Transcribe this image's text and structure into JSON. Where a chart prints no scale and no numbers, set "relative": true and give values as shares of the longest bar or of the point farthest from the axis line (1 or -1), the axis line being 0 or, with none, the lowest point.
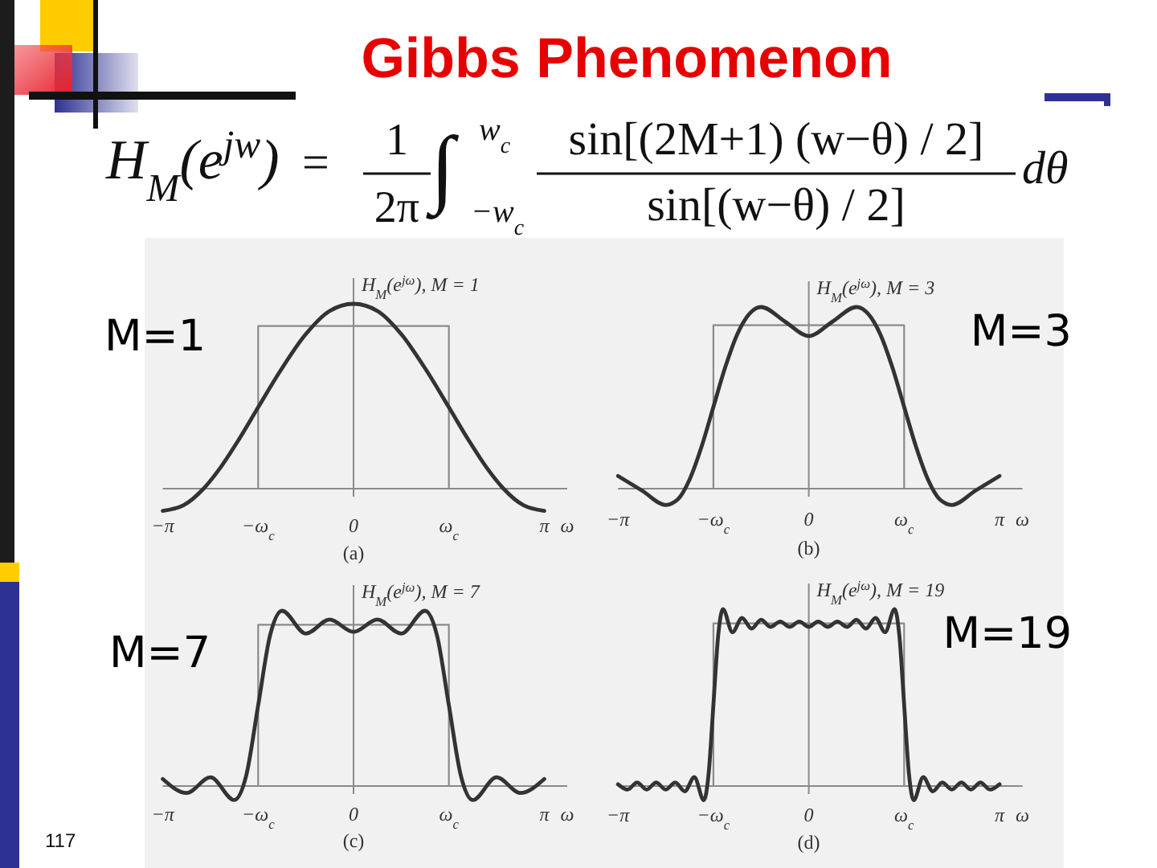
{
  "chart_data": [
    {
      "type": "other",
      "title": "Gibbs Phenomenon",
      "annotations": [
        "H$_{M}$(e$^{jw}$)",
        "=",
        "1",
        "2π",
        "∫",
        "w$_{c}$",
        "−w$_{c}$",
        "sin[(2M+1) (w−θ) / 2]",
        "sin[(w−θ) / 2]",
        "dθ",
        "117"
      ]
    },
    {
      "type": "line",
      "title": "M=1",
      "ylabel": "H$_{M}$(e$^{jω}$), M = 1",
      "xlabel": "ω",
      "annotations": [
        "(a)"
      ],
      "relative": true,
      "xlim": [
        -3.1416,
        3.52
      ],
      "xticks": [
        {
          "value": -3.1416,
          "label": "−π"
        },
        {
          "value": -1.5708,
          "label": "−ω$_{c}$"
        },
        {
          "value": 0,
          "label": "0"
        },
        {
          "value": 1.5708,
          "label": "ω$_{c}$"
        },
        {
          "value": 3.1416,
          "label": "π"
        }
      ],
      "ref_lines": [
        {
          "axis": "x",
          "value": 0,
          "color": "#8a8a8a"
        }
      ],
      "series": [
        {
          "type": "step",
          "color": "#8a8a8a",
          "x": [
            -1.5708,
            -1.5708,
            1.5708
          ],
          "values": [
            0,
            0.88,
            0
          ]
        },
        {
          "color": "#333333",
          "x": [
            -3.1416,
            -2.8,
            -2.47,
            -2.2,
            -1.9,
            -1.5708,
            -1.2,
            -0.8,
            -0.4,
            0,
            0.4,
            0.8,
            1.2,
            1.5708,
            1.9,
            2.2,
            2.47,
            2.8,
            3.1416
          ],
          "values": [
            -0.12,
            -0.09,
            0,
            0.11,
            0.26,
            0.44,
            0.64,
            0.83,
            0.96,
            1,
            0.96,
            0.83,
            0.64,
            0.44,
            0.26,
            0.11,
            0,
            -0.09,
            -0.12
          ]
        }
      ]
    },
    {
      "type": "line",
      "title": "M=3",
      "ylabel": "H$_{M}$(e$^{jω}$), M = 3",
      "xlabel": "ω",
      "annotations": [
        "(b)"
      ],
      "relative": true,
      "xlim": [
        -3.1416,
        3.52
      ],
      "xticks": [
        {
          "value": -3.1416,
          "label": "−π"
        },
        {
          "value": -1.5708,
          "label": "−ω$_{c}$"
        },
        {
          "value": 0,
          "label": "0"
        },
        {
          "value": 1.5708,
          "label": "ω$_{c}$"
        },
        {
          "value": 3.1416,
          "label": "π"
        }
      ],
      "ref_lines": [
        {
          "axis": "x",
          "value": 0,
          "color": "#8a8a8a"
        }
      ],
      "series": [
        {
          "type": "step",
          "color": "#8a8a8a",
          "x": [
            -1.5708,
            -1.5708,
            1.5708
          ],
          "values": [
            0,
            0.9,
            0
          ]
        },
        {
          "color": "#333333",
          "x": [
            -3.1416,
            -2.7489,
            -2.3562,
            -2.16,
            -1.9635,
            -1.7671,
            -1.5708,
            -1.3744,
            -1.1781,
            -0.7854,
            -0.3927,
            0,
            0.3927,
            0.7854,
            1.1781,
            1.3744,
            1.5708,
            1.7671,
            1.9635,
            2.16,
            2.3562,
            2.7489,
            3.1416
          ],
          "values": [
            0.07,
            -0.01,
            -0.09,
            -0.06,
            0.05,
            0.23,
            0.45,
            0.67,
            0.85,
            1,
            0.92,
            0.84,
            0.92,
            1,
            0.85,
            0.67,
            0.45,
            0.23,
            0.05,
            -0.06,
            -0.09,
            -0.01,
            0.07
          ]
        }
      ]
    },
    {
      "type": "line",
      "title": "M=7",
      "ylabel": "H$_{M}$(e$^{jω}$), M = 7",
      "xlabel": "ω",
      "annotations": [
        "(c)"
      ],
      "relative": true,
      "xlim": [
        -3.1416,
        3.52
      ],
      "xticks": [
        {
          "value": -3.1416,
          "label": "−π"
        },
        {
          "value": -1.5708,
          "label": "−ω$_{c}$"
        },
        {
          "value": 0,
          "label": "0"
        },
        {
          "value": 1.5708,
          "label": "ω$_{c}$"
        },
        {
          "value": 3.1416,
          "label": "π"
        }
      ],
      "ref_lines": [
        {
          "axis": "x",
          "value": 0,
          "color": "#8a8a8a"
        }
      ],
      "series": [
        {
          "type": "step",
          "color": "#8a8a8a",
          "x": [
            -1.5708,
            -1.5708,
            1.5708
          ],
          "values": [
            0,
            0.92,
            0
          ]
        },
        {
          "color": "#333333",
          "x": [
            -3.1416,
            -2.7489,
            -2.3562,
            -1.9635,
            -1.7671,
            -1.5708,
            -1.3744,
            -1.1781,
            -0.7854,
            -0.3927,
            0,
            0.3927,
            0.7854,
            1.1781,
            1.3744,
            1.5708,
            1.7671,
            1.9635,
            2.3562,
            2.7489,
            3.1416
          ],
          "values": [
            0.04,
            -0.04,
            0.05,
            -0.08,
            0.06,
            0.46,
            0.86,
            1,
            0.87,
            0.95,
            0.88,
            0.95,
            0.87,
            1,
            0.86,
            0.46,
            0.06,
            -0.08,
            0.05,
            -0.04,
            0.04
          ]
        }
      ]
    },
    {
      "type": "line",
      "title": "M=19",
      "ylabel": "H$_{M}$(e$^{jω}$), M = 19",
      "xlabel": "ω",
      "annotations": [
        "(d)"
      ],
      "relative": true,
      "xlim": [
        -3.1416,
        3.52
      ],
      "xticks": [
        {
          "value": -3.1416,
          "label": "−π"
        },
        {
          "value": -1.5708,
          "label": "−ω$_{c}$"
        },
        {
          "value": 0,
          "label": "0"
        },
        {
          "value": 1.5708,
          "label": "ω$_{c}$"
        },
        {
          "value": 3.1416,
          "label": "π"
        }
      ],
      "ref_lines": [
        {
          "axis": "x",
          "value": 0,
          "color": "#8a8a8a"
        }
      ],
      "series": [
        {
          "type": "step",
          "color": "#8a8a8a",
          "x": [
            -1.5708,
            -1.5708,
            1.5708
          ],
          "values": [
            0,
            0.92,
            0
          ]
        },
        {
          "color": "#333333",
          "x": [
            -3.1416,
            -2.9845,
            -2.8274,
            -2.6704,
            -2.5133,
            -2.3562,
            -2.1991,
            -2.042,
            -1.885,
            -1.7279,
            -1.6493,
            -1.5708,
            -1.4923,
            -1.4137,
            -1.2566,
            -1.0996,
            -0.9425,
            -0.7854,
            -0.6283,
            -0.4712,
            -0.3142,
            -0.1571,
            0,
            0.1571,
            0.3142,
            0.4712,
            0.6283,
            0.7854,
            0.9425,
            1.0996,
            1.2566,
            1.4137,
            1.4923,
            1.5708,
            1.6493,
            1.7279,
            1.885,
            2.042,
            2.1991,
            2.3562,
            2.5133,
            2.6704,
            2.8274,
            2.9845,
            3.1416
          ],
          "values": [
            0.01,
            -0.02,
            0.02,
            -0.02,
            0.02,
            -0.02,
            0.02,
            -0.03,
            0.05,
            -0.08,
            0.07,
            0.46,
            0.85,
            1,
            0.87,
            0.95,
            0.89,
            0.94,
            0.9,
            0.93,
            0.9,
            0.93,
            0.9,
            0.93,
            0.9,
            0.93,
            0.9,
            0.94,
            0.89,
            0.95,
            0.87,
            1,
            0.85,
            0.46,
            0.07,
            -0.08,
            0.05,
            -0.03,
            0.02,
            -0.02,
            0.02,
            -0.02,
            0.02,
            -0.02,
            0.01
          ]
        }
      ]
    }
  ]
}
